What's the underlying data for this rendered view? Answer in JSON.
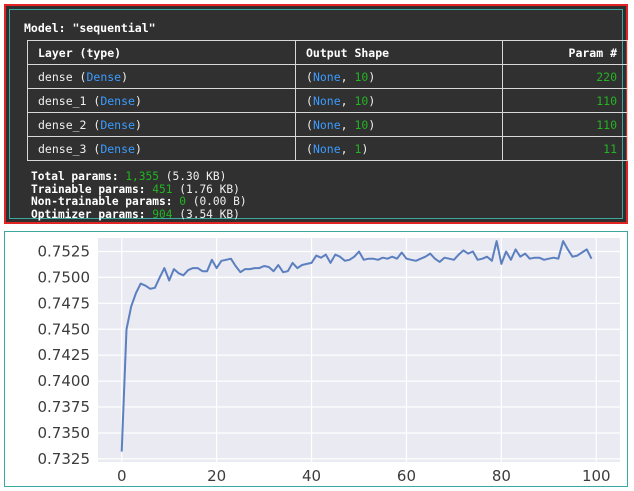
{
  "model": {
    "title": "Model: \"sequential\"",
    "headers": {
      "layer": "Layer (type)",
      "output": "Output Shape",
      "params": "Param #"
    },
    "layers": [
      {
        "name": "dense",
        "type": "Dense",
        "shape_none": "None",
        "shape_dim": "10",
        "params": "220"
      },
      {
        "name": "dense_1",
        "type": "Dense",
        "shape_none": "None",
        "shape_dim": "10",
        "params": "110"
      },
      {
        "name": "dense_2",
        "type": "Dense",
        "shape_none": "None",
        "shape_dim": "10",
        "params": "110"
      },
      {
        "name": "dense_3",
        "type": "Dense",
        "shape_none": "None",
        "shape_dim": "1",
        "params": "11"
      }
    ],
    "totals": {
      "total_label": "Total params:",
      "total_value": "1,355",
      "total_size": "(5.30 KB)",
      "trainable_label": "Trainable params:",
      "trainable_value": "451",
      "trainable_size": "(1.76 KB)",
      "nontrainable_label": "Non-trainable params:",
      "nontrainable_value": "0",
      "nontrainable_size": "(0.00 B)",
      "optimizer_label": "Optimizer params:",
      "optimizer_value": "904",
      "optimizer_size": "(3.54 KB)"
    }
  },
  "colors": {
    "keyword": "#3b9cff",
    "number": "#22b422",
    "line": "#5b7fbf",
    "plot_bg": "#eaeaf2"
  },
  "chart_data": {
    "type": "line",
    "title": "",
    "xlabel": "",
    "ylabel": "",
    "xlim": [
      -5,
      105
    ],
    "ylim": [
      0.7322,
      0.7538
    ],
    "xticks": [
      0,
      20,
      40,
      60,
      80,
      100
    ],
    "yticks": [
      0.7325,
      0.735,
      0.7375,
      0.74,
      0.7425,
      0.745,
      0.7475,
      0.75,
      0.7525
    ],
    "ytick_labels": [
      "0.7325",
      "0.7350",
      "0.7375",
      "0.7400",
      "0.7425",
      "0.7450",
      "0.7475",
      "0.7500",
      "0.7525"
    ],
    "grid": true,
    "x": [
      0,
      1,
      2,
      3,
      4,
      5,
      6,
      7,
      8,
      9,
      10,
      11,
      12,
      13,
      14,
      15,
      16,
      17,
      18,
      19,
      20,
      21,
      22,
      23,
      24,
      25,
      26,
      27,
      28,
      29,
      30,
      31,
      32,
      33,
      34,
      35,
      36,
      37,
      38,
      39,
      40,
      41,
      42,
      43,
      44,
      45,
      46,
      47,
      48,
      49,
      50,
      51,
      52,
      53,
      54,
      55,
      56,
      57,
      58,
      59,
      60,
      61,
      62,
      63,
      64,
      65,
      66,
      67,
      68,
      69,
      70,
      71,
      72,
      73,
      74,
      75,
      76,
      77,
      78,
      79,
      80,
      81,
      82,
      83,
      84,
      85,
      86,
      87,
      88,
      89,
      90,
      91,
      92,
      93,
      94,
      95,
      96,
      97,
      98,
      99
    ],
    "y": [
      0.7332,
      0.745,
      0.7472,
      0.7485,
      0.7494,
      0.7492,
      0.7489,
      0.749,
      0.75,
      0.7509,
      0.7497,
      0.7508,
      0.7504,
      0.7502,
      0.7507,
      0.7509,
      0.7509,
      0.7506,
      0.7506,
      0.7517,
      0.7509,
      0.7516,
      0.7517,
      0.7518,
      0.7511,
      0.7505,
      0.7508,
      0.7508,
      0.7509,
      0.7509,
      0.7511,
      0.751,
      0.7506,
      0.7512,
      0.7505,
      0.7506,
      0.7514,
      0.7509,
      0.7512,
      0.7513,
      0.7514,
      0.7521,
      0.7519,
      0.7522,
      0.7514,
      0.7522,
      0.752,
      0.7516,
      0.7517,
      0.752,
      0.7525,
      0.7517,
      0.7518,
      0.7518,
      0.7517,
      0.7519,
      0.7518,
      0.752,
      0.7518,
      0.7524,
      0.7518,
      0.7517,
      0.7516,
      0.7518,
      0.752,
      0.7523,
      0.7518,
      0.7515,
      0.7519,
      0.7518,
      0.7517,
      0.7522,
      0.7526,
      0.7523,
      0.7525,
      0.7517,
      0.7518,
      0.752,
      0.7516,
      0.7535,
      0.7513,
      0.7525,
      0.7517,
      0.7527,
      0.752,
      0.7523,
      0.7518,
      0.7519,
      0.7519,
      0.7517,
      0.7518,
      0.7519,
      0.7518,
      0.7535,
      0.7527,
      0.752,
      0.7521,
      0.7524,
      0.7527,
      0.7518
    ]
  }
}
